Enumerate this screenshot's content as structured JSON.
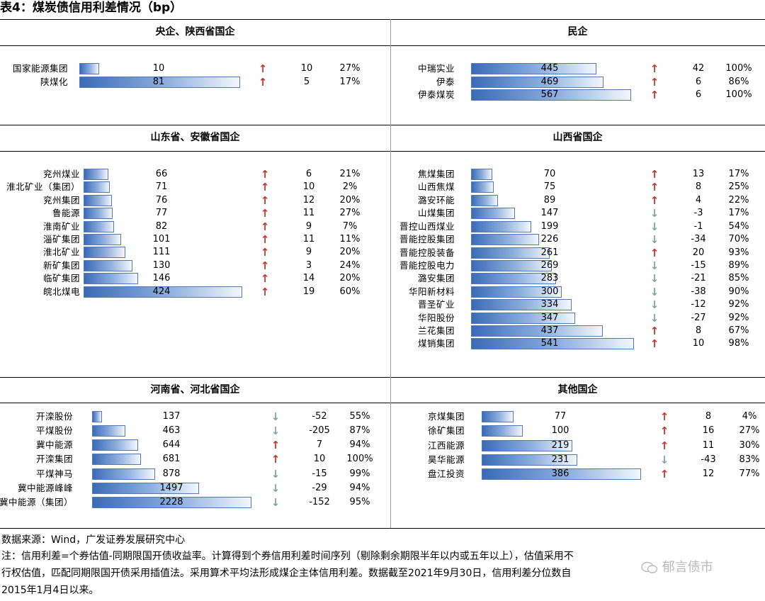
{
  "title": "表4：煤炭债信用利差情况（bp）",
  "panels": [
    {
      "title": "央企、陕西省国企",
      "rows": [
        {
          "name": "国家能源集团",
          "value": "10",
          "dir": "up",
          "change": "10",
          "pct": "27%"
        },
        {
          "name": "陕煤化",
          "value": "81",
          "dir": "up",
          "change": "5",
          "pct": "17%"
        }
      ]
    },
    {
      "title": "民企",
      "rows": [
        {
          "name": "中瑞实业",
          "value": "445",
          "dir": "up",
          "change": "42",
          "pct": "100%"
        },
        {
          "name": "伊泰",
          "value": "469",
          "dir": "up",
          "change": "6",
          "pct": "86%"
        },
        {
          "name": "伊泰煤炭",
          "value": "567",
          "dir": "up",
          "change": "6",
          "pct": "100%"
        }
      ]
    },
    {
      "title": "山东省、安徽省国企",
      "rows": [
        {
          "name": "兖州煤业",
          "value": "66",
          "dir": "up",
          "change": "6",
          "pct": "21%"
        },
        {
          "name": "淮北矿业（集团）",
          "value": "71",
          "dir": "up",
          "change": "10",
          "pct": "2%"
        },
        {
          "name": "兖州集团",
          "value": "76",
          "dir": "up",
          "change": "12",
          "pct": "20%"
        },
        {
          "name": "鲁能源",
          "value": "77",
          "dir": "up",
          "change": "11",
          "pct": "27%"
        },
        {
          "name": "淮南矿业",
          "value": "82",
          "dir": "up",
          "change": "9",
          "pct": "7%"
        },
        {
          "name": "淄矿集团",
          "value": "101",
          "dir": "up",
          "change": "11",
          "pct": "11%"
        },
        {
          "name": "淮北矿业",
          "value": "111",
          "dir": "up",
          "change": "9",
          "pct": "20%"
        },
        {
          "name": "新矿集团",
          "value": "130",
          "dir": "up",
          "change": "3",
          "pct": "24%"
        },
        {
          "name": "临矿集团",
          "value": "146",
          "dir": "up",
          "change": "14",
          "pct": "20%"
        },
        {
          "name": "皖北煤电",
          "value": "424",
          "dir": "up",
          "change": "19",
          "pct": "60%"
        }
      ]
    },
    {
      "title": "山西省国企",
      "rows": [
        {
          "name": "焦煤集团",
          "value": "70",
          "dir": "up",
          "change": "13",
          "pct": "17%"
        },
        {
          "name": "山西焦煤",
          "value": "75",
          "dir": "up",
          "change": "8",
          "pct": "25%"
        },
        {
          "name": "潞安环能",
          "value": "89",
          "dir": "up",
          "change": "4",
          "pct": "22%"
        },
        {
          "name": "山煤集团",
          "value": "147",
          "dir": "down",
          "change": "-3",
          "pct": "17%"
        },
        {
          "name": "晋控山西煤业",
          "value": "199",
          "dir": "down",
          "change": "-1",
          "pct": "54%"
        },
        {
          "name": "晋能控股集团",
          "value": "226",
          "dir": "down",
          "change": "-34",
          "pct": "70%"
        },
        {
          "name": "晋能控股装备",
          "value": "261",
          "dir": "up",
          "change": "20",
          "pct": "93%"
        },
        {
          "name": "晋能控股电力",
          "value": "269",
          "dir": "down",
          "change": "-15",
          "pct": "89%"
        },
        {
          "name": "潞安集团",
          "value": "283",
          "dir": "down",
          "change": "-21",
          "pct": "85%"
        },
        {
          "name": "华阳新材料",
          "value": "300",
          "dir": "down",
          "change": "-38",
          "pct": "90%"
        },
        {
          "name": "晋圣矿业",
          "value": "334",
          "dir": "down",
          "change": "-12",
          "pct": "92%"
        },
        {
          "name": "华阳股份",
          "value": "347",
          "dir": "down",
          "change": "-27",
          "pct": "92%"
        },
        {
          "name": "兰花集团",
          "value": "437",
          "dir": "up",
          "change": "8",
          "pct": "67%"
        },
        {
          "name": "煤销集团",
          "value": "541",
          "dir": "up",
          "change": "10",
          "pct": "98%"
        }
      ]
    },
    {
      "title": "河南省、河北省国企",
      "rows": [
        {
          "name": "开滦股份",
          "value": "137",
          "dir": "down",
          "change": "-52",
          "pct": "55%"
        },
        {
          "name": "平煤股份",
          "value": "463",
          "dir": "down",
          "change": "-205",
          "pct": "87%"
        },
        {
          "name": "冀中能源",
          "value": "644",
          "dir": "up",
          "change": "7",
          "pct": "94%"
        },
        {
          "name": "开滦集团",
          "value": "681",
          "dir": "up",
          "change": "10",
          "pct": "100%"
        },
        {
          "name": "平煤神马",
          "value": "878",
          "dir": "down",
          "change": "-15",
          "pct": "99%"
        },
        {
          "name": "冀中能源峰峰",
          "value": "1497",
          "dir": "down",
          "change": "-29",
          "pct": "94%"
        },
        {
          "name": "冀中能源（集团）",
          "value": "2228",
          "dir": "down",
          "change": "-152",
          "pct": "95%"
        }
      ]
    },
    {
      "title": "其他国企",
      "rows": [
        {
          "name": "京煤集团",
          "value": "77",
          "dir": "up",
          "change": "8",
          "pct": "4%"
        },
        {
          "name": "徐矿集团",
          "value": "100",
          "dir": "up",
          "change": "16",
          "pct": "27%"
        },
        {
          "name": "江西能源",
          "value": "219",
          "dir": "up",
          "change": "11",
          "pct": "30%"
        },
        {
          "name": "昊华能源",
          "value": "231",
          "dir": "down",
          "change": "-43",
          "pct": "83%"
        },
        {
          "name": "盘江投资",
          "value": "386",
          "dir": "up",
          "change": "12",
          "pct": "77%"
        }
      ]
    }
  ],
  "footer": {
    "source": "数据来源：Wind，广发证券发展研究中心",
    "note_line1": "注：信用利差=个券估值-同期限国开债收益率。计算得到个券信用利差时间序列（剔除剩余期限半年以内或五年以上），估值采用不",
    "note_line2": "行权估值，匹配同期限国开债采用插值法。采用算术平均法形成煤企主体信用利差。数据截至2021年9月30日，信用利差分位数自",
    "note_line3": "2015年1月4日以来。"
  },
  "watermark": "郁言债市"
}
